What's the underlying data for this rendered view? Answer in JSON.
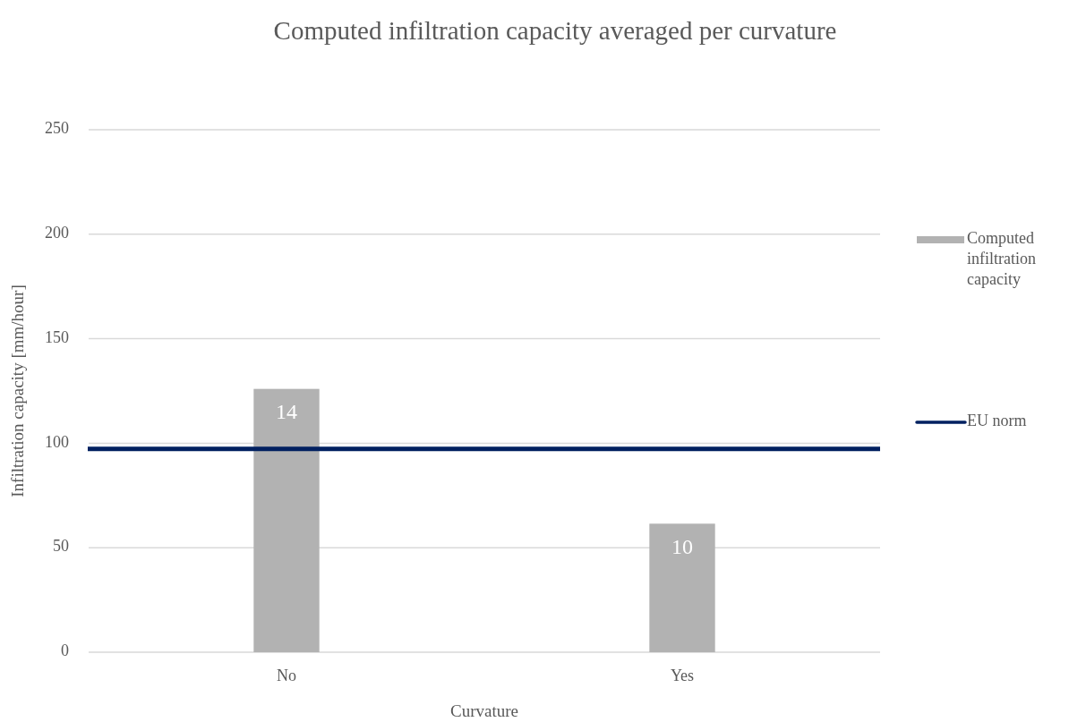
{
  "chart_data": {
    "type": "bar",
    "title": "Computed infiltration capacity averaged per curvature",
    "xlabel": "Curvature",
    "ylabel": "Infiltration capacity [mm/hour]",
    "categories": [
      "No",
      "Yes"
    ],
    "series": [
      {
        "name": "Computed infiltration capacity",
        "color": "#b2b2b2",
        "values": [
          126,
          61.5
        ]
      }
    ],
    "annotations": [
      {
        "text": "14",
        "x": "No",
        "y": 126
      },
      {
        "text": "10",
        "x": "Yes",
        "y": 61.5
      }
    ],
    "ylim": [
      0,
      250
    ],
    "yticks": [
      0,
      50,
      100,
      150,
      200,
      250
    ],
    "grid": "y",
    "legend": "right",
    "ref_lines": [
      {
        "axis": "y",
        "value": 97.3,
        "label": "EU norm",
        "color": "#002060"
      }
    ]
  }
}
